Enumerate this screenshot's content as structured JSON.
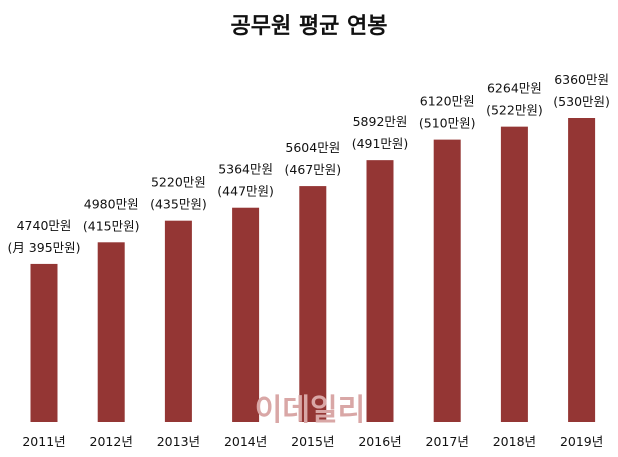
{
  "chart_data": {
    "type": "bar",
    "title": "공무원 평균 연봉",
    "categories": [
      "2011년",
      "2012년",
      "2013년",
      "2014년",
      "2015년",
      "2016년",
      "2017년",
      "2018년",
      "2019년"
    ],
    "values": [
      4740,
      4980,
      5220,
      5364,
      5604,
      5892,
      6120,
      6264,
      6360
    ],
    "monthly": [
      395,
      415,
      435,
      447,
      467,
      491,
      510,
      522,
      530
    ],
    "value_labels": [
      "4740만원",
      "4980만원",
      "5220만원",
      "5364만원",
      "5604만원",
      "5892만원",
      "6120만원",
      "6264만원",
      "6360만원"
    ],
    "monthly_labels": [
      "(月 395만원)",
      "(415만원)",
      "(435만원)",
      "(447만원)",
      "(467만원)",
      "(491만원)",
      "(510만원)",
      "(522만원)",
      "(530만원)"
    ],
    "xlabel": "",
    "ylabel": "",
    "ylim": [
      2985,
      6360
    ],
    "grid": false,
    "bar_color": "#943634",
    "watermark": "이데일리"
  }
}
